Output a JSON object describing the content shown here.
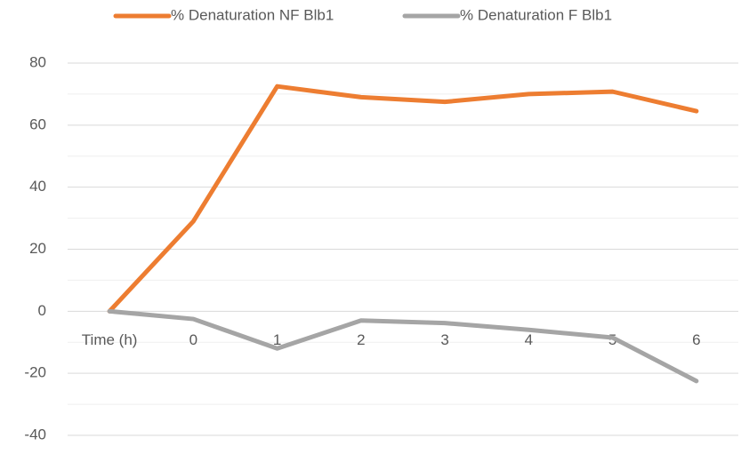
{
  "chart_data": {
    "type": "line",
    "categories": [
      "Time (h)",
      "0",
      "1",
      "2",
      "3",
      "4",
      "5",
      "6"
    ],
    "series": [
      {
        "name": "% Denaturation NF Blb1",
        "color": "#ed7d31",
        "values": [
          0,
          29,
          72.5,
          69,
          67.5,
          70,
          70.8,
          64.5
        ]
      },
      {
        "name": "% Denaturation F Blb1",
        "color": "#a5a5a5",
        "values": [
          0,
          -2.5,
          -12,
          -3,
          -3.8,
          -6,
          -8.5,
          -22.5
        ]
      }
    ],
    "ylim": [
      -40,
      80
    ],
    "yticks": [
      -40,
      -20,
      0,
      20,
      40,
      60,
      80
    ],
    "minor_yticks": [
      -30,
      -10,
      10,
      30,
      50,
      70
    ],
    "grid": true,
    "legend": "top"
  }
}
